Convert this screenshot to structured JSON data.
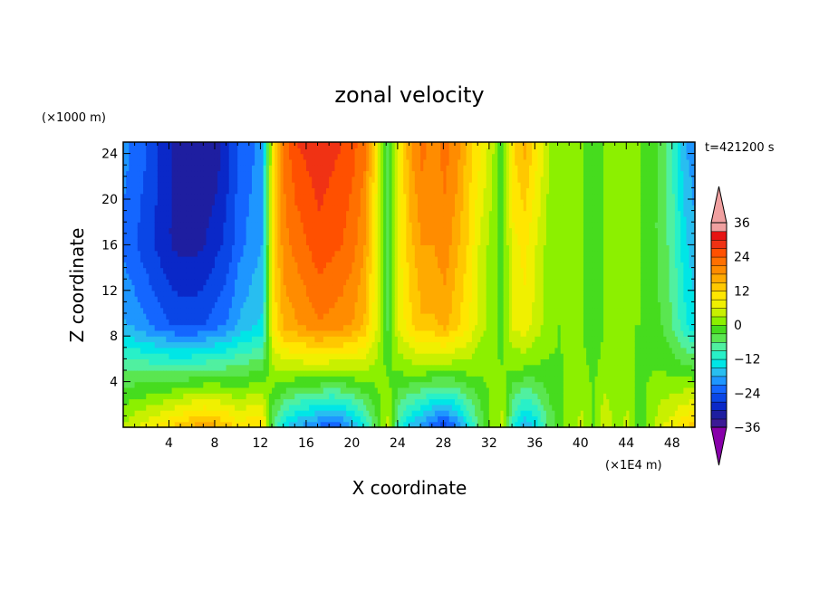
{
  "chart_data": {
    "type": "heatmap",
    "title": "zonal velocity",
    "xlabel": "X coordinate",
    "ylabel": "Z coordinate",
    "x_units": "(×1E4 m)",
    "y_units": "(×1000 m)",
    "time_label": "t=421200 s",
    "xlim": [
      0,
      50
    ],
    "ylim": [
      0,
      25
    ],
    "x_ticks": [
      4,
      8,
      12,
      16,
      20,
      24,
      28,
      32,
      36,
      40,
      44,
      48
    ],
    "y_ticks": [
      4,
      8,
      12,
      16,
      20,
      24
    ],
    "colorbar": {
      "levels": [
        -36,
        -33,
        -30,
        -27,
        -24,
        -21,
        -18,
        -15,
        -12,
        -9,
        -6,
        -3,
        0,
        3,
        6,
        9,
        12,
        15,
        18,
        21,
        24,
        27,
        30,
        33,
        36
      ],
      "tick_labels": [
        "36",
        "24",
        "12",
        "0",
        "−12",
        "−24",
        "−36"
      ],
      "tick_values": [
        36,
        24,
        12,
        0,
        -12,
        -24,
        -36
      ],
      "colors": [
        "#8800aa",
        "#3c1a96",
        "#1e1ea0",
        "#0a28c8",
        "#0a46e6",
        "#1466ff",
        "#1e96ff",
        "#28bef0",
        "#00e6e6",
        "#28f0c8",
        "#50f0a0",
        "#5ae650",
        "#46dc1e",
        "#8cf000",
        "#c8f000",
        "#f0f000",
        "#ffe600",
        "#ffc800",
        "#ffaa00",
        "#ff8c00",
        "#ff7000",
        "#ff5000",
        "#f03214",
        "#e61414",
        "#f0a0a0"
      ],
      "over_color": "#f0a0a0",
      "under_color": "#8800aa"
    },
    "columns_x": [
      0,
      1,
      2,
      3,
      4,
      5,
      6,
      7,
      8,
      9,
      10,
      11,
      12,
      13,
      14,
      15,
      16,
      17,
      18,
      19,
      20,
      21,
      22,
      23,
      24,
      25,
      26,
      27,
      28,
      29,
      30,
      31,
      32,
      33,
      34,
      35,
      36,
      37,
      38,
      39,
      40,
      41,
      42,
      43,
      44,
      45,
      46,
      47,
      48,
      49,
      50
    ],
    "profile_top": [
      -20,
      -22,
      -24,
      -27,
      -30,
      -32,
      -33,
      -33,
      -32,
      -28,
      -24,
      -22,
      -20,
      10,
      22,
      27,
      28,
      29,
      28,
      27,
      25,
      22,
      10,
      -6,
      8,
      18,
      22,
      20,
      22,
      20,
      14,
      10,
      5,
      -2,
      12,
      16,
      10,
      4,
      0,
      0,
      0,
      0,
      0,
      0,
      0,
      0,
      -2,
      -4,
      -10,
      -18,
      -20
    ],
    "profile_mid": [
      -22,
      -24,
      -26,
      -28,
      -30,
      -31,
      -31,
      -30,
      -28,
      -26,
      -22,
      -20,
      -18,
      12,
      20,
      22,
      24,
      26,
      25,
      24,
      22,
      18,
      8,
      -4,
      8,
      14,
      18,
      18,
      20,
      16,
      12,
      6,
      2,
      -2,
      8,
      10,
      6,
      2,
      0,
      1,
      0,
      -2,
      0,
      2,
      0,
      0,
      -2,
      -4,
      -8,
      -14,
      -18
    ],
    "profile_low": [
      4,
      6,
      8,
      10,
      12,
      14,
      16,
      17,
      16,
      14,
      10,
      12,
      12,
      -6,
      -14,
      -18,
      -20,
      -22,
      -24,
      -22,
      -18,
      -12,
      -4,
      4,
      -10,
      -16,
      -20,
      -24,
      -26,
      -22,
      -14,
      -6,
      0,
      4,
      -12,
      -18,
      -14,
      -6,
      -2,
      2,
      4,
      0,
      6,
      2,
      4,
      -2,
      2,
      6,
      8,
      12,
      14
    ]
  }
}
